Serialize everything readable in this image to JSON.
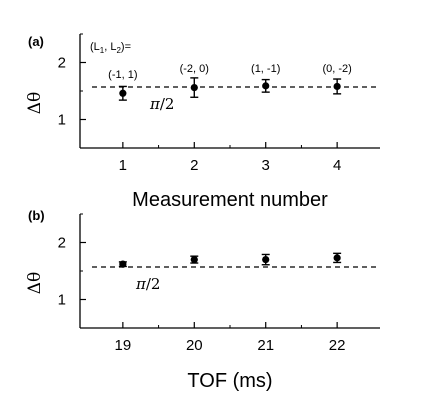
{
  "chart_data": [
    {
      "type": "scatter",
      "panel_label": "(a)",
      "xlabel": "Measurement number",
      "ylabel": "Δθ",
      "xlim": [
        0.4,
        4.6
      ],
      "ylim": [
        0.5,
        2.5
      ],
      "xticks": [
        "1",
        "2",
        "3",
        "4"
      ],
      "yticks": [
        "1",
        "2"
      ],
      "x": [
        1,
        2,
        3,
        4
      ],
      "y": [
        1.46,
        1.56,
        1.59,
        1.58
      ],
      "yerr": [
        0.12,
        0.17,
        0.11,
        0.13
      ],
      "reference_line": {
        "y": 1.5708,
        "label_main": "π",
        "label_rest": "/2",
        "style": "dashed"
      },
      "legend_header": {
        "main": "(L",
        "sub1": "1",
        "mid": ", L",
        "sub2": "2",
        "end": ")="
      },
      "point_labels": [
        "(-1, 1)",
        "(-2, 0)",
        "(1, -1)",
        "(0, -2)"
      ]
    },
    {
      "type": "scatter",
      "panel_label": "(b)",
      "xlabel": "TOF (ms)",
      "ylabel": "Δθ",
      "xlim": [
        18.4,
        22.6
      ],
      "ylim": [
        0.5,
        2.5
      ],
      "xticks": [
        "19",
        "20",
        "21",
        "22"
      ],
      "yticks": [
        "1",
        "2"
      ],
      "x": [
        19,
        20,
        21,
        22
      ],
      "y": [
        1.62,
        1.7,
        1.7,
        1.73
      ],
      "yerr": [
        0.04,
        0.06,
        0.09,
        0.08
      ],
      "reference_line": {
        "y": 1.5708,
        "label_main": "π",
        "label_rest": "/2",
        "style": "dashed"
      }
    }
  ]
}
